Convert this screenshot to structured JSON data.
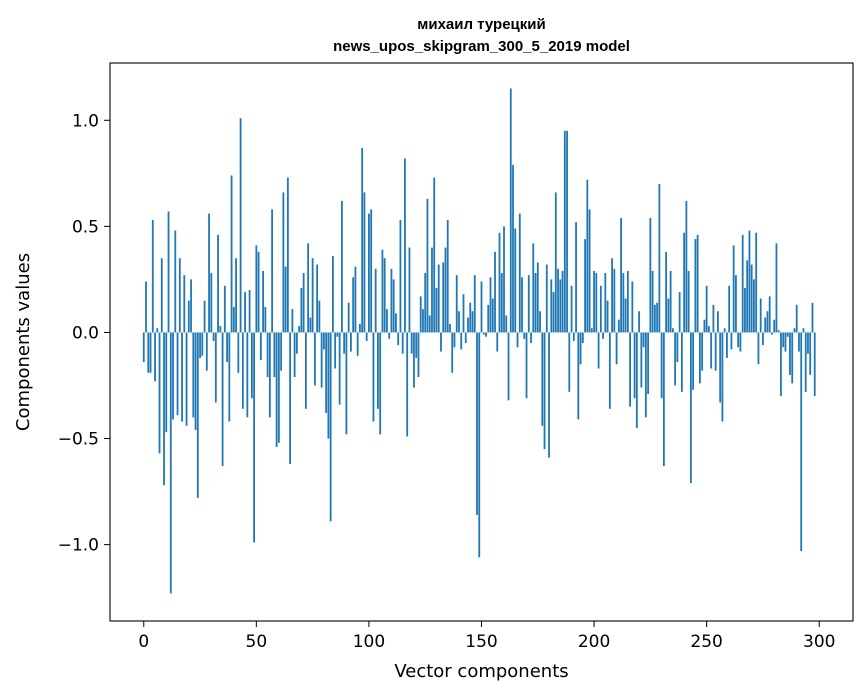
{
  "chart_data": {
    "type": "bar",
    "title": [
      "михаил турецкий",
      "news_upos_skipgram_300_5_2019 model"
    ],
    "xlabel": "Vector components",
    "ylabel": "Components values",
    "xlim": [
      -15,
      315
    ],
    "ylim": [
      -1.36,
      1.27
    ],
    "xticks": [
      0,
      50,
      100,
      150,
      200,
      250,
      300
    ],
    "xtick_labels": [
      "0",
      "50",
      "100",
      "150",
      "200",
      "250",
      "300"
    ],
    "yticks": [
      -1.0,
      -0.5,
      0.0,
      0.5,
      1.0
    ],
    "ytick_labels": [
      "−1.0",
      "−0.5",
      "0.0",
      "0.5",
      "1.0"
    ],
    "bar_color": "#1f77b4",
    "bar_width": 0.8,
    "grid": false,
    "values": [
      -0.14,
      0.24,
      -0.19,
      -0.19,
      0.53,
      -0.23,
      0.02,
      -0.57,
      0.35,
      -0.72,
      -0.47,
      0.57,
      -1.23,
      -0.41,
      0.48,
      -0.39,
      0.35,
      -0.42,
      0.27,
      -0.44,
      0.15,
      0.25,
      -0.4,
      -0.46,
      -0.78,
      -0.12,
      -0.11,
      0.15,
      -0.18,
      0.56,
      0.28,
      -0.04,
      -0.33,
      0.46,
      0.03,
      -0.63,
      0.22,
      -0.14,
      -0.42,
      0.74,
      0.12,
      0.35,
      -0.19,
      1.01,
      -0.36,
      0.19,
      -0.4,
      0.2,
      -0.31,
      -0.99,
      0.41,
      0.38,
      -0.13,
      0.29,
      0.12,
      -0.21,
      -0.4,
      0.58,
      -0.21,
      -0.54,
      -0.52,
      -0.18,
      0.66,
      0.31,
      0.73,
      -0.62,
      0.11,
      -0.21,
      -0.1,
      0.03,
      0.21,
      0.28,
      -0.36,
      0.42,
      0.07,
      0.35,
      -0.25,
      0.32,
      0.15,
      -0.26,
      -0.08,
      -0.38,
      -0.5,
      -0.89,
      0.36,
      -0.17,
      -0.02,
      -0.34,
      0.62,
      -0.1,
      -0.48,
      0.14,
      -0.09,
      0.26,
      0.31,
      -0.11,
      0.04,
      0.87,
      0.66,
      -0.04,
      0.56,
      0.58,
      -0.42,
      0.3,
      -0.36,
      -0.48,
      0.39,
      0.35,
      0.11,
      -0.03,
      0.3,
      0.25,
      0.09,
      -0.06,
      0.53,
      -0.1,
      0.82,
      -0.49,
      0.4,
      -0.1,
      -0.26,
      -0.12,
      -0.21,
      0.17,
      0.11,
      0.28,
      0.63,
      0.08,
      0.4,
      0.73,
      0.21,
      0.32,
      -0.09,
      0.33,
      0.4,
      0.53,
      0.04,
      -0.19,
      -0.07,
      0.27,
      0.1,
      -0.08,
      0.18,
      -0.05,
      0.07,
      0.14,
      0.1,
      0.27,
      -0.86,
      -1.06,
      0.24,
      -0.01,
      -0.02,
      0.13,
      0.26,
      0.16,
      0.38,
      -0.09,
      0.47,
      0.28,
      0.5,
      0.08,
      -0.32,
      1.15,
      0.79,
      0.49,
      -0.07,
      0.56,
      0.26,
      -0.03,
      -0.31,
      0.27,
      -0.05,
      0.42,
      0.28,
      0.33,
      0.1,
      -0.44,
      -0.55,
      0.32,
      -0.59,
      0.25,
      0.19,
      0.66,
      0.3,
      0.25,
      0.29,
      0.95,
      0.95,
      -0.28,
      0.22,
      -0.04,
      0.52,
      -0.41,
      -0.15,
      -0.05,
      0.44,
      0.72,
      0.58,
      0.02,
      0.29,
      0.28,
      -0.17,
      0.22,
      -0.03,
      0.28,
      0.15,
      -0.36,
      0.35,
      0.3,
      -0.15,
      0.06,
      0.54,
      0.28,
      0.16,
      0.29,
      -0.35,
      0.24,
      -0.31,
      -0.45,
      0.1,
      -0.26,
      -0.07,
      -0.4,
      -0.29,
      0.54,
      0.29,
      0.13,
      0.14,
      0.7,
      -0.31,
      -0.63,
      0.38,
      0.16,
      0.29,
      0.02,
      -0.25,
      -0.14,
      0.19,
      -0.28,
      0.47,
      0.62,
      0.29,
      -0.71,
      -0.27,
      0.44,
      0.46,
      -0.24,
      -0.18,
      0.06,
      0.22,
      0.03,
      -0.17,
      0.13,
      -0.18,
      0.1,
      -0.33,
      -0.42,
      0.02,
      -0.12,
      0.22,
      -0.08,
      0.41,
      0.27,
      -0.07,
      -0.09,
      0.46,
      0.21,
      0.34,
      0.48,
      0.32,
      0.25,
      0.47,
      -0.15,
      0.16,
      -0.06,
      0.07,
      0.1,
      0.17,
      -0.01,
      0.06,
      0.42,
      0.01,
      -0.3,
      -0.07,
      -0.09,
      -0.02,
      -0.2,
      -0.24,
      0.02,
      0.13,
      -0.09,
      -1.03,
      0.02,
      -0.28,
      -0.1,
      -0.2,
      0.14,
      -0.3
    ]
  }
}
